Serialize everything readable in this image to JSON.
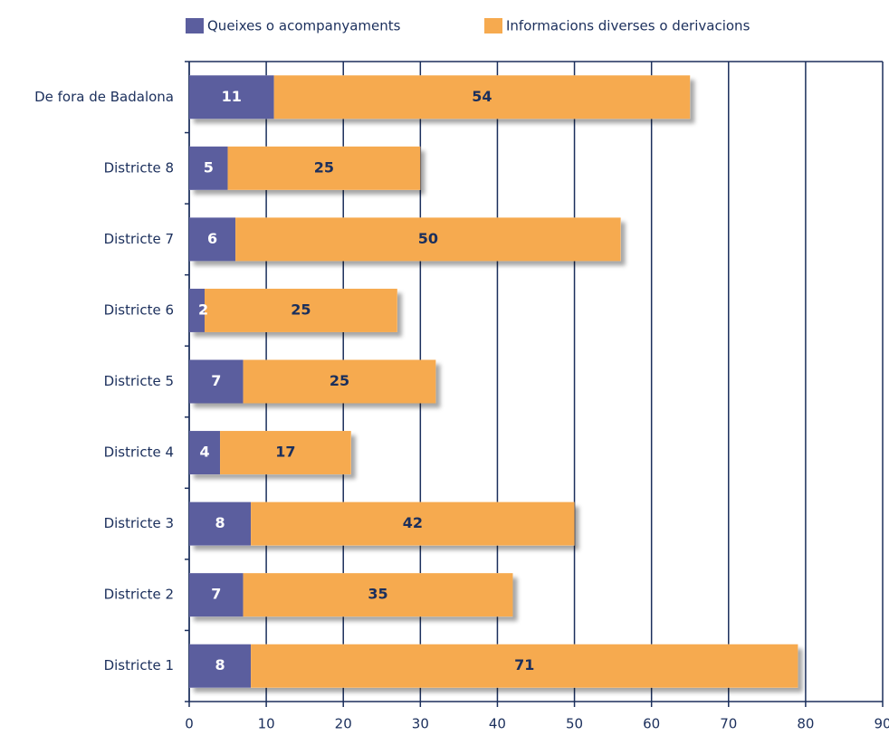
{
  "chart_data": {
    "type": "stacked_barh",
    "categories": [
      "De fora de Badalona",
      "Districte 8",
      "Districte 7",
      "Districte 6",
      "Districte 5",
      "Districte 4",
      "Districte 3",
      "Districte 2",
      "Districte 1"
    ],
    "series": [
      {
        "name": "Queixes o acompanyaments",
        "color": "#5b5e9e",
        "values": [
          11,
          5,
          6,
          2,
          7,
          4,
          8,
          7,
          8
        ]
      },
      {
        "name": "Informacions diverses o derivacions",
        "color": "#f6aa4f",
        "values": [
          54,
          25,
          50,
          25,
          25,
          17,
          42,
          35,
          71
        ]
      }
    ],
    "xlim": [
      0,
      90
    ],
    "xticks": [
      0,
      10,
      20,
      30,
      40,
      50,
      60,
      70,
      80,
      90
    ],
    "grid": true,
    "legend": "top"
  }
}
